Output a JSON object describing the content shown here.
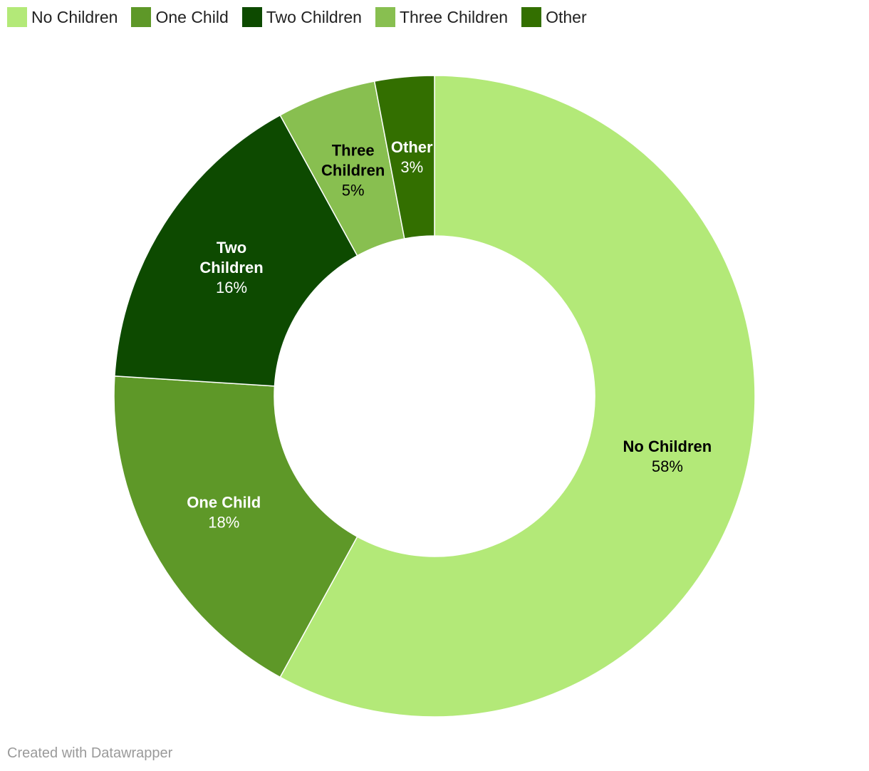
{
  "chart_data": {
    "type": "pie",
    "subtype": "donut",
    "title": "",
    "categories": [
      "No Children",
      "One Child",
      "Two Children",
      "Three Children",
      "Other"
    ],
    "values": [
      58,
      18,
      16,
      5,
      3
    ],
    "value_labels": [
      "58%",
      "18%",
      "16%",
      "5%",
      "3%"
    ],
    "label_lines": [
      [
        "No Children"
      ],
      [
        "One Child"
      ],
      [
        "Two",
        "Children"
      ],
      [
        "Three",
        "Children"
      ],
      [
        "Other"
      ]
    ],
    "colors": [
      "#b3e978",
      "#5e9828",
      "#0d4a00",
      "#88bf50",
      "#336f00"
    ],
    "label_colors": [
      "#000000",
      "#ffffff",
      "#ffffff",
      "#000000",
      "#ffffff"
    ],
    "legend_position": "top-left"
  },
  "footer": {
    "credit": "Created with Datawrapper"
  }
}
